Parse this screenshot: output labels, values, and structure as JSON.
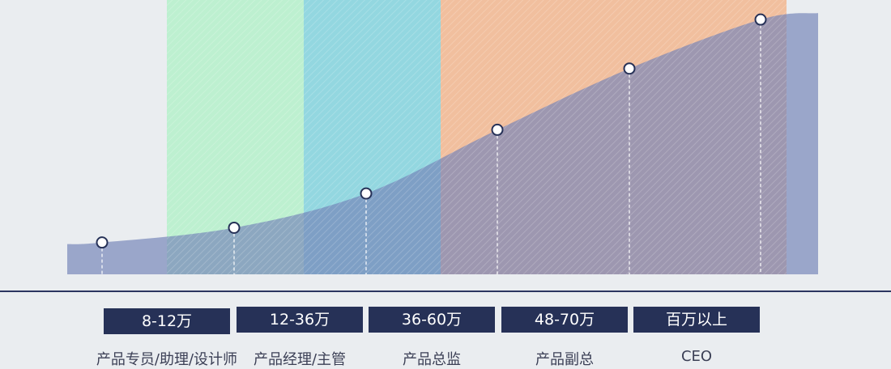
{
  "chart_data": {
    "type": "area",
    "categories": [
      "8-12万",
      "12-36万",
      "36-60万",
      "48-70万",
      "百万以上",
      ""
    ],
    "series": [
      {
        "values": [
          13,
          19,
          33,
          59,
          84,
          104
        ]
      }
    ],
    "ylim": [
      0,
      110
    ],
    "grid": false,
    "role_labels": [
      "产品专员/助理/设计师",
      "产品经理/主管",
      "产品总监",
      "产品副总",
      "CEO"
    ]
  },
  "colors": {
    "background": "#eaedf0",
    "area": "#7585b8",
    "band_green": "#bdf0d0",
    "band_cyan": "#93d7e0",
    "band_orange": "#f1bf9e",
    "badge": "#263157",
    "axis": "#2b3560",
    "marker_stroke": "#263157"
  }
}
